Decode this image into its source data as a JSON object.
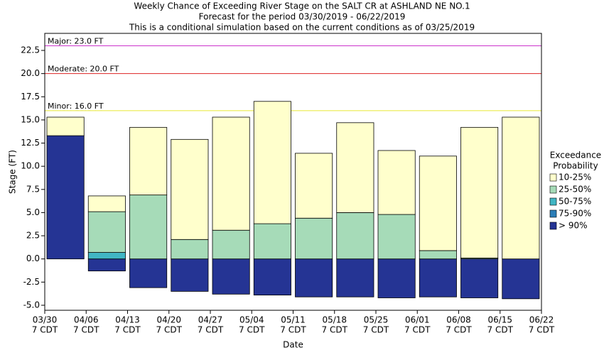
{
  "chart_data": {
    "type": "floating-bar",
    "title": [
      "Weekly Chance of Exceeding River Stage on the SALT CR at ASHLAND NE NO.1",
      "Forecast for the period 03/30/2019 - 06/22/2019",
      "This is a conditional simulation based on the current conditions as of 03/25/2019"
    ],
    "x_label": "Date",
    "y_label": "Stage (FT)",
    "xticks": [
      "03/30",
      "04/06",
      "04/13",
      "04/20",
      "04/27",
      "05/04",
      "05/11",
      "05/18",
      "05/25",
      "06/01",
      "06/08",
      "06/15",
      "06/22"
    ],
    "xtick_time": "7 CDT",
    "ylim": [
      -5.54,
      24.34
    ],
    "yticks": [
      {
        "value": -5,
        "label": "-5.0"
      },
      -2.5,
      {
        "value": 0,
        "label": "0.0"
      },
      2.5,
      {
        "value": 5,
        "label": "5.0"
      },
      7.5,
      {
        "value": 10,
        "label": "10.0"
      },
      12.5,
      {
        "value": 15,
        "label": "15.0"
      },
      17.5,
      {
        "value": 20,
        "label": "20.0"
      },
      22.5
    ],
    "thresholds": [
      {
        "label": "Major: 23.0 FT",
        "value": 23,
        "color": "#cc33cc"
      },
      {
        "label": "Moderate: 20.0 FT",
        "value": 20,
        "color": "#dd2222"
      },
      {
        "label": "Minor: 16.0 FT",
        "value": 16,
        "color": "#e6e633"
      }
    ],
    "legend_title": [
      "Exceedance",
      "Probability"
    ],
    "series": [
      {
        "name": "> 90%",
        "color": "#253494",
        "values": [
          [
            0,
            13.3
          ],
          [
            -1.3,
            0
          ],
          [
            -3.1,
            0
          ],
          [
            -3.5,
            0
          ],
          [
            -3.8,
            0
          ],
          [
            -3.9,
            0
          ],
          [
            -4.1,
            0
          ],
          [
            -4.1,
            0
          ],
          [
            -4.2,
            0
          ],
          [
            -4.1,
            0
          ],
          [
            -4.2,
            0
          ],
          [
            -4.3,
            0
          ]
        ]
      },
      {
        "name": "75-90%",
        "color": "#2c7fb8",
        "values": [
          null,
          null,
          null,
          null,
          null,
          null,
          null,
          null,
          null,
          null,
          null,
          null
        ]
      },
      {
        "name": "50-75%",
        "color": "#41b6c4",
        "values": [
          null,
          [
            0,
            0.7
          ],
          null,
          null,
          null,
          null,
          null,
          null,
          null,
          null,
          null,
          null
        ]
      },
      {
        "name": "25-50%",
        "color": "#a6dbb8",
        "values": [
          null,
          [
            0.7,
            5.1
          ],
          [
            0,
            6.9
          ],
          [
            0,
            2.1
          ],
          [
            0,
            3.1
          ],
          [
            0,
            3.8
          ],
          [
            0,
            4.4
          ],
          [
            0,
            5.0
          ],
          [
            0,
            4.8
          ],
          [
            0,
            0.9
          ],
          [
            0,
            0.1
          ],
          null
        ]
      },
      {
        "name": "10-25%",
        "color": "#ffffcc",
        "values": [
          [
            13.3,
            15.3
          ],
          [
            5.1,
            6.8
          ],
          [
            6.9,
            14.2
          ],
          [
            2.1,
            12.9
          ],
          [
            3.1,
            15.3
          ],
          [
            3.8,
            17.0
          ],
          [
            4.4,
            11.4
          ],
          [
            5.0,
            14.7
          ],
          [
            4.8,
            11.7
          ],
          [
            0.9,
            11.1
          ],
          [
            0.1,
            14.2
          ],
          [
            0,
            15.3
          ]
        ]
      }
    ]
  }
}
